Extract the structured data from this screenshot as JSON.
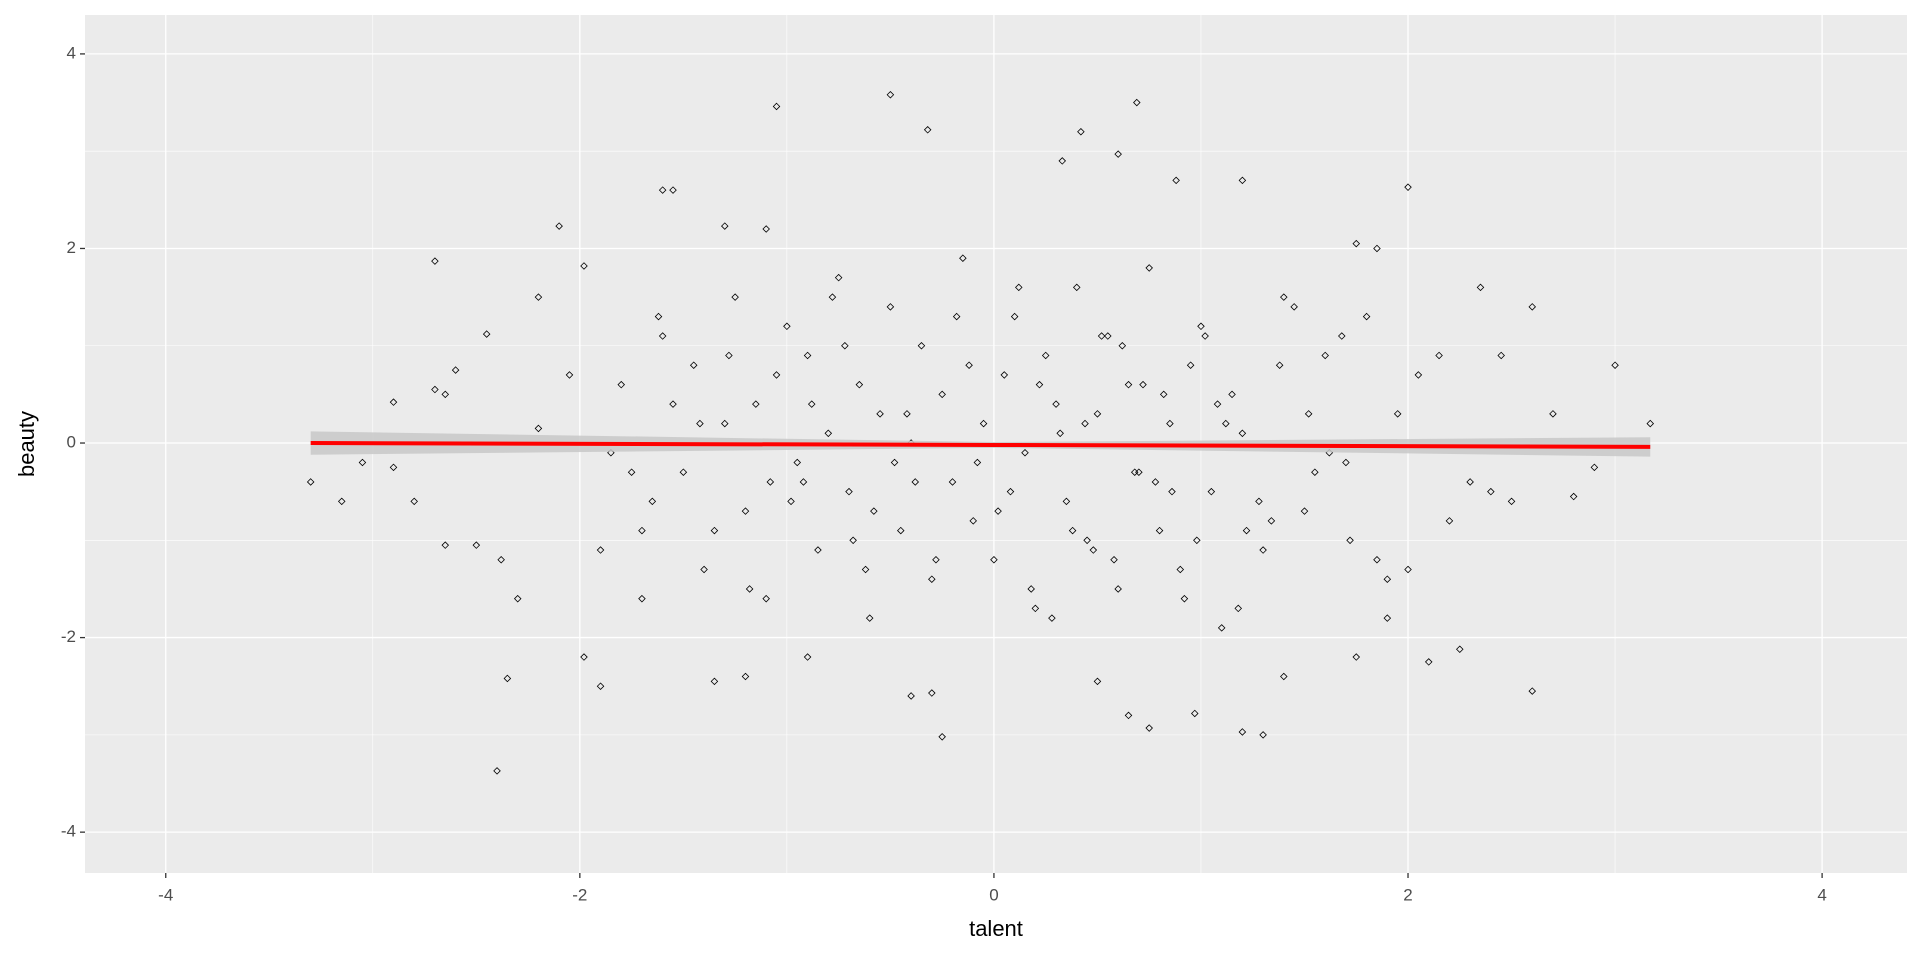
{
  "chart_data": {
    "type": "scatter",
    "x_label": "talent",
    "y_label": "beauty",
    "xlim": [
      -4.39,
      4.41
    ],
    "ylim": [
      -4.42,
      4.4
    ],
    "xticks": [
      -4,
      -2,
      0,
      2,
      4
    ],
    "yticks": [
      -4,
      -2,
      0,
      2,
      4
    ],
    "grid": true,
    "background": "#ebebeb",
    "point_color": "#000000",
    "points": {
      "x": [
        -3.3,
        -3.15,
        -3.05,
        -2.9,
        -2.9,
        -2.8,
        -2.7,
        -2.65,
        -2.6,
        -2.45,
        -2.4,
        -2.35,
        -2.38,
        -2.1,
        -2.2,
        -1.98,
        -1.98,
        -1.9,
        -1.6,
        -1.55,
        -1.3,
        -1.05,
        -1.1,
        -0.5,
        -0.32,
        0.42,
        0.69,
        0.6,
        0.33,
        0.88,
        1.2,
        2.0,
        1.85,
        1.75,
        2.35,
        2.6,
        3.0,
        3.17,
        2.9,
        2.8,
        2.6,
        2.25,
        2.0,
        2.1,
        1.3,
        1.2,
        0.97,
        0.75,
        0.65,
        -0.25,
        -0.3,
        -0.4,
        -1.2,
        -1.35,
        -0.9,
        0.5,
        1.4,
        1.75,
        1.9,
        -1.7,
        -2.3,
        -2.5,
        -2.65,
        -2.7,
        -2.2,
        -1.8,
        -1.7,
        -1.6,
        -1.5,
        -1.45,
        -1.4,
        -1.3,
        -1.25,
        -1.2,
        -1.15,
        -1.1,
        -1.0,
        -0.95,
        -0.9,
        -0.85,
        -0.8,
        -0.75,
        -0.7,
        -0.65,
        -0.6,
        -0.55,
        -0.5,
        -0.45,
        -0.4,
        -0.35,
        -0.3,
        -0.25,
        -0.2,
        -0.15,
        -0.1,
        -0.05,
        0.0,
        0.05,
        0.1,
        0.15,
        0.2,
        0.25,
        0.3,
        0.35,
        0.4,
        0.45,
        0.5,
        0.55,
        0.6,
        0.65,
        0.7,
        0.75,
        0.8,
        0.85,
        0.9,
        0.95,
        1.0,
        1.05,
        1.1,
        1.15,
        1.2,
        1.3,
        1.4,
        1.5,
        1.6,
        1.7,
        1.8,
        1.9,
        2.05,
        2.2,
        -1.75,
        -1.55,
        -1.35,
        -1.05,
        -0.92,
        -0.72,
        -0.58,
        -0.42,
        -0.28,
        -0.12,
        0.08,
        0.22,
        0.38,
        0.52,
        0.68,
        0.82,
        0.98,
        1.12,
        1.28,
        1.45,
        1.62,
        1.85,
        2.3,
        2.45,
        -1.62,
        -1.42,
        -1.18,
        -0.98,
        -0.78,
        -0.62,
        -0.48,
        -0.18,
        0.02,
        0.18,
        0.32,
        0.48,
        0.62,
        0.78,
        0.92,
        1.08,
        1.22,
        1.38,
        1.55,
        1.72,
        2.15,
        2.5,
        -2.05,
        -1.9,
        -1.85,
        -1.65,
        -1.28,
        -1.08,
        -0.88,
        -0.68,
        -0.38,
        -0.08,
        0.12,
        0.28,
        0.44,
        0.58,
        0.72,
        0.86,
        1.02,
        1.18,
        1.34,
        1.52,
        1.68,
        1.95,
        2.4,
        2.7
      ],
      "y": [
        -0.4,
        -0.6,
        -0.2,
        0.42,
        -0.25,
        -0.6,
        1.87,
        -1.05,
        0.75,
        1.12,
        -3.37,
        -2.42,
        -1.2,
        2.23,
        1.5,
        1.82,
        -2.2,
        -2.5,
        2.6,
        2.6,
        2.23,
        3.46,
        2.2,
        3.58,
        3.22,
        3.2,
        3.5,
        2.97,
        2.9,
        2.7,
        2.7,
        2.63,
        2.0,
        2.05,
        1.6,
        1.4,
        0.8,
        0.2,
        -0.25,
        -0.55,
        -2.55,
        -2.12,
        -1.3,
        -2.25,
        -3.0,
        -2.97,
        -2.78,
        -2.93,
        -2.8,
        -3.02,
        -2.57,
        -2.6,
        -2.4,
        -2.45,
        -2.2,
        -2.45,
        -2.4,
        -2.2,
        -1.8,
        -1.6,
        -1.6,
        -1.05,
        0.5,
        0.55,
        0.15,
        0.6,
        -0.9,
        1.1,
        -0.3,
        0.8,
        -1.3,
        0.2,
        1.5,
        -0.7,
        0.4,
        -1.6,
        1.2,
        -0.2,
        0.9,
        -1.1,
        0.1,
        1.7,
        -0.5,
        0.6,
        -1.8,
        0.3,
        1.4,
        -0.9,
        0.0,
        1.0,
        -1.4,
        0.5,
        -0.4,
        1.9,
        -0.8,
        0.2,
        -1.2,
        0.7,
        1.3,
        -0.1,
        -1.7,
        0.9,
        0.4,
        -0.6,
        1.6,
        -1.0,
        0.3,
        1.1,
        -1.5,
        0.6,
        -0.3,
        1.8,
        -0.9,
        0.2,
        -1.3,
        0.8,
        1.2,
        -0.5,
        -1.9,
        0.5,
        0.1,
        -1.1,
        1.5,
        -0.7,
        0.9,
        -0.2,
        1.3,
        -1.4,
        0.7,
        -0.8,
        -0.3,
        0.4,
        -0.9,
        0.7,
        -0.4,
        1.0,
        -0.7,
        0.3,
        -1.2,
        0.8,
        -0.5,
        0.6,
        -0.9,
        1.1,
        -0.3,
        0.5,
        -1.0,
        0.2,
        -0.6,
        1.4,
        -0.1,
        -1.2,
        -0.4,
        0.9,
        1.3,
        0.2,
        -1.5,
        -0.6,
        1.5,
        -1.3,
        -0.2,
        1.3,
        -0.7,
        -1.5,
        0.1,
        -1.1,
        1.0,
        -0.4,
        -1.6,
        0.4,
        -0.9,
        0.8,
        -0.3,
        -1.0,
        0.9,
        -0.6,
        0.7,
        -1.1,
        -0.1,
        -0.6,
        0.9,
        -0.4,
        0.4,
        -1.0,
        -0.4,
        -0.2,
        1.6,
        -1.8,
        0.2,
        -1.2,
        0.6,
        -0.5,
        1.1,
        -1.7,
        -0.8,
        0.3,
        1.1,
        0.3,
        -0.5,
        0.3
      ]
    },
    "fit": {
      "color": "#ff0000",
      "band_color": "#c8c8c8",
      "x": [
        -3.3,
        0.0,
        3.17
      ],
      "y": [
        0.0,
        -0.02,
        -0.04
      ],
      "lower": [
        -0.12,
        -0.05,
        -0.14
      ],
      "upper": [
        0.12,
        0.01,
        0.06
      ]
    }
  }
}
